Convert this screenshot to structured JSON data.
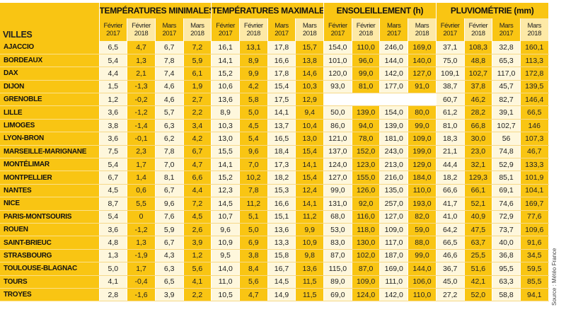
{
  "table": {
    "city_header": "VILLES",
    "groups": [
      "TEMPÉRATURES MINIMALES (°C)",
      "TEMPÉRATURES MAXIMALES (°C)",
      "ENSOLEILLEMENT (h)",
      "PLUVIOMÉTRIE (mm)"
    ],
    "sub_headers": [
      [
        "Février",
        "2017"
      ],
      [
        "Février",
        "2018"
      ],
      [
        "Mars",
        "2017"
      ],
      [
        "Mars",
        "2018"
      ]
    ],
    "rows": [
      {
        "city": "AJACCIO",
        "values": [
          "6,5",
          "4,7",
          "6,7",
          "7,2",
          "16,1",
          "13,1",
          "17,8",
          "15,7",
          "154,0",
          "110,0",
          "246,0",
          "169,0",
          "37,1",
          "108,3",
          "32,8",
          "160,1"
        ]
      },
      {
        "city": "BORDEAUX",
        "values": [
          "5,4",
          "1,3",
          "7,8",
          "5,9",
          "14,1",
          "8,9",
          "16,6",
          "13,8",
          "101,0",
          "96,0",
          "144,0",
          "140,0",
          "75,0",
          "48,8",
          "65,3",
          "113,3"
        ]
      },
      {
        "city": "DAX",
        "values": [
          "4,4",
          "2,1",
          "7,4",
          "6,1",
          "15,2",
          "9,9",
          "17,8",
          "14,6",
          "120,0",
          "99,0",
          "142,0",
          "127,0",
          "109,1",
          "102,7",
          "117,0",
          "172,8"
        ]
      },
      {
        "city": "DIJON",
        "values": [
          "1,5",
          "-1,3",
          "4,6",
          "1,9",
          "10,6",
          "4,2",
          "15,4",
          "10,3",
          "93,0",
          "81,0",
          "177,0",
          "91,0",
          "38,7",
          "37,8",
          "45,7",
          "139,5"
        ]
      },
      {
        "city": "GRENOBLE",
        "values": [
          "1,2",
          "-0,2",
          "4,6",
          "2,7",
          "13,6",
          "5,8",
          "17,5",
          "12,9",
          "",
          "",
          "",
          "",
          "60,7",
          "46,2",
          "82,7",
          "146,4"
        ]
      },
      {
        "city": "LILLE",
        "values": [
          "3,6",
          "-1,2",
          "5,7",
          "2,2",
          "8,9",
          "5,0",
          "14,1",
          "9,4",
          "50,0",
          "139,0",
          "154,0",
          "80,0",
          "61,2",
          "28,2",
          "39,1",
          "66,5"
        ]
      },
      {
        "city": "LIMOGES",
        "values": [
          "3,8",
          "-1,4",
          "6,3",
          "3,4",
          "10,3",
          "4,5",
          "13,7",
          "10,4",
          "86,0",
          "94,0",
          "139,0",
          "99,0",
          "81,0",
          "66,8",
          "102,7",
          "146"
        ]
      },
      {
        "city": "LYON-BRON",
        "values": [
          "3,6",
          "-0,1",
          "6,2",
          "4,2",
          "13,0",
          "5,4",
          "16,5",
          "13,0",
          "121,0",
          "78,0",
          "181,0",
          "109,0",
          "18,3",
          "30,0",
          "56",
          "107,3"
        ]
      },
      {
        "city": "MARSEILLE-MARIGNANE",
        "values": [
          "7,5",
          "2,3",
          "7,8",
          "6,7",
          "15,5",
          "9,6",
          "18,4",
          "15,4",
          "137,0",
          "152,0",
          "243,0",
          "199,0",
          "21,1",
          "23,0",
          "74,8",
          "46,7"
        ]
      },
      {
        "city": "MONTÉLIMAR",
        "values": [
          "5,4",
          "1,7",
          "7,0",
          "4,7",
          "14,1",
          "7,0",
          "17,3",
          "14,1",
          "124,0",
          "123,0",
          "213,0",
          "129,0",
          "44,4",
          "32,1",
          "52,9",
          "133,3"
        ]
      },
      {
        "city": "MONTPELLIER",
        "values": [
          "6,7",
          "1,4",
          "8,1",
          "6,6",
          "15,2",
          "10,2",
          "18,2",
          "15,4",
          "127,0",
          "155,0",
          "216,0",
          "184,0",
          "18,2",
          "129,3",
          "85,1",
          "101,9"
        ]
      },
      {
        "city": "NANTES",
        "values": [
          "4,5",
          "0,6",
          "6,7",
          "4,4",
          "12,3",
          "7,8",
          "15,3",
          "12,4",
          "99,0",
          "126,0",
          "135,0",
          "110,0",
          "66,6",
          "66,1",
          "69,1",
          "104,1"
        ]
      },
      {
        "city": "NICE",
        "values": [
          "8,7",
          "5,5",
          "9,6",
          "7,2",
          "14,5",
          "11,2",
          "16,6",
          "14,1",
          "131,0",
          "92,0",
          "257,0",
          "193,0",
          "41,7",
          "52,1",
          "74,6",
          "169,7"
        ]
      },
      {
        "city": "PARIS-MONTSOURIS",
        "values": [
          "5,4",
          "0",
          "7,6",
          "4,5",
          "10,7",
          "5,1",
          "15,1",
          "11,2",
          "68,0",
          "116,0",
          "127,0",
          "82,0",
          "41,0",
          "40,9",
          "72,9",
          "77,6"
        ]
      },
      {
        "city": "ROUEN",
        "values": [
          "3,6",
          "-1,2",
          "5,9",
          "2,6",
          "9,6",
          "5,0",
          "13,6",
          "9,9",
          "53,0",
          "118,0",
          "109,0",
          "59,0",
          "64,2",
          "47,5",
          "73,7",
          "109,6"
        ]
      },
      {
        "city": "SAINT-BRIEUC",
        "values": [
          "4,8",
          "1,3",
          "6,7",
          "3,9",
          "10,9",
          "6,9",
          "13,3",
          "10,9",
          "83,0",
          "130,0",
          "117,0",
          "88,0",
          "66,5",
          "63,7",
          "40,0",
          "91,6"
        ]
      },
      {
        "city": "STRASBOURG",
        "values": [
          "1,3",
          "-1,9",
          "4,3",
          "1,2",
          "9,5",
          "3,8",
          "15,8",
          "9,8",
          "87,0",
          "102,0",
          "187,0",
          "99,0",
          "46,6",
          "25,5",
          "36,8",
          "34,5"
        ]
      },
      {
        "city": "TOULOUSE-BLAGNAC",
        "values": [
          "5,0",
          "1,7",
          "6,3",
          "5,6",
          "14,0",
          "8,4",
          "16,7",
          "13,6",
          "115,0",
          "87,0",
          "169,0",
          "144,0",
          "36,7",
          "51,6",
          "95,5",
          "59,5"
        ]
      },
      {
        "city": "TOURS",
        "values": [
          "4,1",
          "-0,4",
          "6,5",
          "4,1",
          "11,0",
          "5,6",
          "14,5",
          "11,5",
          "89,0",
          "109,0",
          "111,0",
          "106,0",
          "45,0",
          "42,1",
          "63,3",
          "85,5"
        ]
      },
      {
        "city": "TROYES",
        "values": [
          "2,8",
          "-1,6",
          "3,9",
          "2,2",
          "10,5",
          "4,7",
          "14,9",
          "11,5",
          "69,0",
          "124,0",
          "142,0",
          "110,0",
          "27,2",
          "52,0",
          "58,8",
          "94,1"
        ]
      }
    ]
  },
  "source": "Source : Météo France",
  "colors": {
    "dark_cell": "#f9c513",
    "light_cell": "#fef7dc"
  }
}
